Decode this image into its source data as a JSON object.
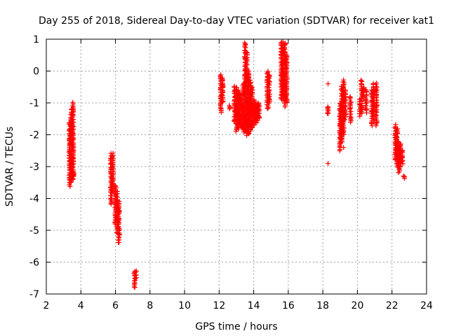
{
  "chart_data": {
    "type": "scatter",
    "title": "Day 255 of 2018, Sidereal Day-to-day VTEC variation (SDTVAR) for receiver kat1",
    "xlabel": "GPS time / hours",
    "ylabel": "SDTVAR / TECUs",
    "xlim": [
      2,
      24
    ],
    "ylim": [
      -7,
      1
    ],
    "xticks": [
      "2",
      "4",
      "6",
      "8",
      "10",
      "12",
      "14",
      "16",
      "18",
      "20",
      "22",
      "24"
    ],
    "yticks": [
      "1",
      "0",
      "-1",
      "-2",
      "-3",
      "-4",
      "-5",
      "-6",
      "-7"
    ],
    "grid": true,
    "marker": "+",
    "color": "#ff0000",
    "segments": [
      {
        "x": 3.35,
        "y0": -3.6,
        "y1": -1.6
      },
      {
        "x": 3.45,
        "y0": -3.5,
        "y1": -1.2
      },
      {
        "x": 3.55,
        "y0": -3.4,
        "y1": -1.0
      },
      {
        "x": 3.6,
        "y0": -3.3,
        "y1": -3.2
      },
      {
        "x": 5.75,
        "y0": -4.2,
        "y1": -2.6
      },
      {
        "x": 5.85,
        "y0": -3.8,
        "y1": -2.6
      },
      {
        "x": 6.0,
        "y0": -4.8,
        "y1": -3.6
      },
      {
        "x": 6.1,
        "y0": -5.1,
        "y1": -3.8
      },
      {
        "x": 6.2,
        "y0": -5.4,
        "y1": -4.1
      },
      {
        "x": 7.1,
        "y0": -6.8,
        "y1": -6.3
      },
      {
        "x": 7.2,
        "y0": -6.5,
        "y1": -6.3
      },
      {
        "x": 12.1,
        "y0": -1.3,
        "y1": -0.1
      },
      {
        "x": 12.2,
        "y0": -1.0,
        "y1": -0.2
      },
      {
        "x": 12.6,
        "y0": -1.2,
        "y1": -1.1
      },
      {
        "x": 12.9,
        "y0": -1.6,
        "y1": -0.5
      },
      {
        "x": 13.0,
        "y0": -1.9,
        "y1": -0.5
      },
      {
        "x": 13.1,
        "y0": -1.8,
        "y1": -0.6
      },
      {
        "x": 13.2,
        "y0": -1.7,
        "y1": -0.7
      },
      {
        "x": 13.3,
        "y0": -1.8,
        "y1": -0.8
      },
      {
        "x": 13.4,
        "y0": -1.9,
        "y1": -0.4
      },
      {
        "x": 13.5,
        "y0": -1.9,
        "y1": 0.9
      },
      {
        "x": 13.6,
        "y0": -2.0,
        "y1": 0.6
      },
      {
        "x": 13.7,
        "y0": -2.0,
        "y1": 0.0
      },
      {
        "x": 13.8,
        "y0": -1.9,
        "y1": -0.3
      },
      {
        "x": 13.9,
        "y0": -1.8,
        "y1": -0.5
      },
      {
        "x": 14.0,
        "y0": -1.7,
        "y1": -0.9
      },
      {
        "x": 14.1,
        "y0": -1.6,
        "y1": -1.0
      },
      {
        "x": 14.2,
        "y0": -1.6,
        "y1": -1.0
      },
      {
        "x": 14.3,
        "y0": -1.5,
        "y1": -1.0
      },
      {
        "x": 14.8,
        "y0": -1.2,
        "y1": 0.0
      },
      {
        "x": 14.9,
        "y0": -1.0,
        "y1": -0.1
      },
      {
        "x": 15.6,
        "y0": -0.9,
        "y1": 0.9
      },
      {
        "x": 15.7,
        "y0": -0.9,
        "y1": 0.9
      },
      {
        "x": 15.8,
        "y0": -1.1,
        "y1": 0.9
      },
      {
        "x": 15.9,
        "y0": -1.0,
        "y1": 0.5
      },
      {
        "x": 18.3,
        "y0": -1.35,
        "y1": -1.1
      },
      {
        "x": 19.0,
        "y0": -2.5,
        "y1": -1.0
      },
      {
        "x": 19.1,
        "y0": -2.2,
        "y1": -0.5
      },
      {
        "x": 19.2,
        "y0": -2.0,
        "y1": -0.3
      },
      {
        "x": 19.3,
        "y0": -1.5,
        "y1": -0.6
      },
      {
        "x": 19.6,
        "y0": -1.6,
        "y1": -0.8
      },
      {
        "x": 20.15,
        "y0": -1.4,
        "y1": -0.9
      },
      {
        "x": 20.25,
        "y0": -1.3,
        "y1": -0.3
      },
      {
        "x": 20.35,
        "y0": -0.8,
        "y1": -0.5
      },
      {
        "x": 20.5,
        "y0": -1.3,
        "y1": -0.6
      },
      {
        "x": 20.85,
        "y0": -1.7,
        "y1": -0.6
      },
      {
        "x": 20.95,
        "y0": -1.6,
        "y1": -0.4
      },
      {
        "x": 21.1,
        "y0": -1.7,
        "y1": -0.4
      },
      {
        "x": 22.2,
        "y0": -2.8,
        "y1": -1.7
      },
      {
        "x": 22.3,
        "y0": -3.0,
        "y1": -1.8
      },
      {
        "x": 22.4,
        "y0": -3.2,
        "y1": -2.2
      },
      {
        "x": 22.5,
        "y0": -3.0,
        "y1": -2.3
      },
      {
        "x": 22.6,
        "y0": -2.9,
        "y1": -2.5
      },
      {
        "x": 22.7,
        "y0": -3.35,
        "y1": -3.3
      }
    ],
    "outliers": [
      {
        "x": 18.3,
        "y": -0.4
      },
      {
        "x": 18.3,
        "y": -2.9
      },
      {
        "x": 19.2,
        "y": -2.4
      },
      {
        "x": 20.2,
        "y": -0.3
      }
    ]
  }
}
